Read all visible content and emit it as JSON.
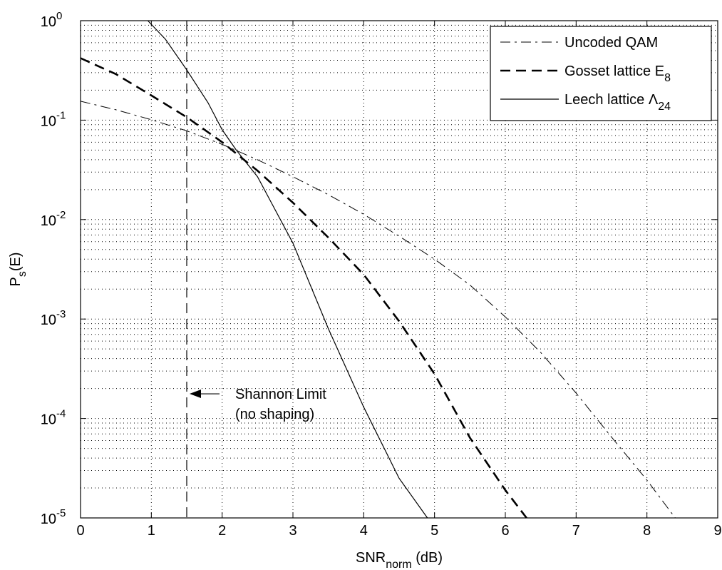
{
  "chart_data": {
    "type": "line",
    "xlabel": {
      "main": "SNR",
      "sub": "norm",
      "suffix": " (dB)"
    },
    "ylabel": {
      "main": "P",
      "sub": "s",
      "suffix": "(E)"
    },
    "xlim": [
      0,
      9
    ],
    "ylim": [
      1e-05,
      1
    ],
    "yscale": "log",
    "grid": true,
    "legend_position": "top-right",
    "x_ticks": [
      "0",
      "1",
      "2",
      "3",
      "4",
      "5",
      "6",
      "7",
      "8",
      "9"
    ],
    "y_ticks": [
      {
        "base": "10",
        "exp": "0"
      },
      {
        "base": "10",
        "exp": "-1"
      },
      {
        "base": "10",
        "exp": "-2"
      },
      {
        "base": "10",
        "exp": "-3"
      },
      {
        "base": "10",
        "exp": "-4"
      },
      {
        "base": "10",
        "exp": "-5"
      }
    ],
    "series": [
      {
        "name": "Uncoded QAM",
        "legend": {
          "main": "Uncoded QAM",
          "sub": ""
        },
        "style": "dashdot",
        "x": [
          0.0,
          0.5,
          1.0,
          1.5,
          2.0,
          2.5,
          3.0,
          3.5,
          4.0,
          4.5,
          5.0,
          5.5,
          6.0,
          6.5,
          7.0,
          7.5,
          8.0,
          8.4
        ],
        "y": [
          0.155,
          0.127,
          0.101,
          0.078,
          0.057,
          0.04,
          0.027,
          0.0178,
          0.0113,
          0.0068,
          0.004,
          0.0022,
          0.00105,
          0.00046,
          0.00018,
          6.5e-05,
          2.4e-05,
          1e-05
        ]
      },
      {
        "name": "Gosset lattice E8",
        "legend": {
          "main": "Gosset lattice E",
          "sub": "8"
        },
        "style": "dashed",
        "x": [
          0.0,
          0.5,
          1.0,
          1.5,
          2.0,
          2.5,
          3.0,
          3.5,
          4.0,
          4.5,
          5.0,
          5.5,
          6.0,
          6.3
        ],
        "y": [
          0.42,
          0.29,
          0.177,
          0.107,
          0.06,
          0.031,
          0.0148,
          0.0066,
          0.0028,
          0.00095,
          0.00028,
          6.4e-05,
          1.9e-05,
          1e-05
        ]
      },
      {
        "name": "Leech lattice Λ24",
        "legend": {
          "main": "Leech lattice Λ",
          "sub": "24"
        },
        "style": "solid",
        "x": [
          0.95,
          1.2,
          1.5,
          1.8,
          2.0,
          2.2,
          2.5,
          3.0,
          3.5,
          4.0,
          4.5,
          4.9
        ],
        "y": [
          1.0,
          0.65,
          0.32,
          0.15,
          0.08,
          0.05,
          0.027,
          0.0058,
          0.0008,
          0.00013,
          2.5e-05,
          1e-05
        ]
      }
    ],
    "vertical_line": {
      "x": 1.5,
      "style": "dashed"
    },
    "annotation": {
      "line1": "Shannon Limit",
      "line2": "(no shaping)",
      "arrow_to_x": 1.5,
      "y": 0.00015
    }
  }
}
